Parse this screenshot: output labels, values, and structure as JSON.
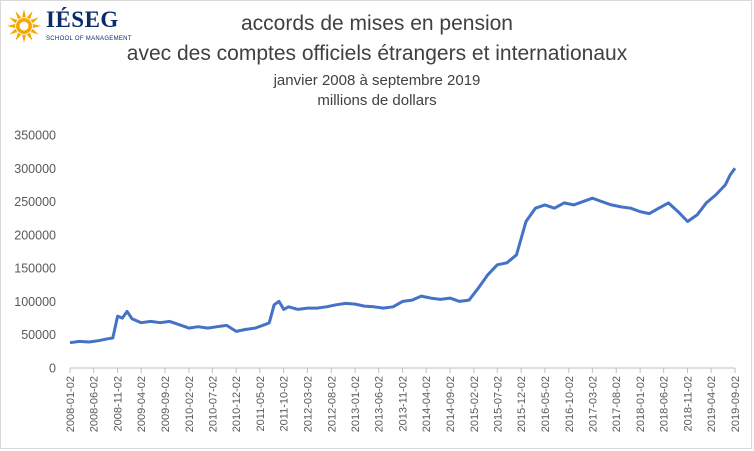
{
  "logo": {
    "brand": "IÉSEG",
    "tagline": "SCHOOL OF MANAGEMENT",
    "colors": {
      "sun": "#f5a800",
      "text": "#0a2a6b"
    }
  },
  "chart_data": {
    "type": "line",
    "title": "accords de mises en pension",
    "title_line2": "avec des comptes officiels étrangers et internationaux",
    "subtitle": "janvier 2008 à septembre 2019",
    "subtitle_line2": "millions de dollars",
    "xlabel": "",
    "ylabel": "",
    "ylim": [
      0,
      350000
    ],
    "xlim": [
      "2008-01-02",
      "2019-09-02"
    ],
    "y_ticks": [
      "0",
      "50000",
      "100000",
      "150000",
      "200000",
      "250000",
      "300000",
      "350000"
    ],
    "x_ticks": [
      "2008-01-02",
      "2008-06-02",
      "2008-11-02",
      "2009-04-02",
      "2009-09-02",
      "2010-02-02",
      "2010-07-02",
      "2010-12-02",
      "2011-05-02",
      "2011-10-02",
      "2012-03-02",
      "2012-08-02",
      "2013-01-02",
      "2013-06-02",
      "2013-11-02",
      "2014-04-02",
      "2014-09-02",
      "2015-02-02",
      "2015-07-02",
      "2015-12-02",
      "2016-05-02",
      "2016-10-02",
      "2017-03-02",
      "2017-08-02",
      "2018-01-02",
      "2018-06-02",
      "2018-11-02",
      "2019-04-02",
      "2019-09-02"
    ],
    "grid": false,
    "legend": "none",
    "line_color": "#4472c4",
    "series": [
      {
        "x": [
          "2008-01-02",
          "2008-03-02",
          "2008-05-02",
          "2008-07-02",
          "2008-09-02",
          "2008-10-02",
          "2008-11-02",
          "2008-12-02",
          "2009-01-02",
          "2009-02-02",
          "2009-04-02",
          "2009-06-02",
          "2009-08-02",
          "2009-10-02",
          "2009-12-02",
          "2010-02-02",
          "2010-04-02",
          "2010-06-02",
          "2010-08-02",
          "2010-10-02",
          "2010-12-02",
          "2011-02-02",
          "2011-04-02",
          "2011-06-02",
          "2011-07-02",
          "2011-08-02",
          "2011-09-02",
          "2011-10-02",
          "2011-11-02",
          "2012-01-02",
          "2012-03-02",
          "2012-05-02",
          "2012-07-02",
          "2012-09-02",
          "2012-11-02",
          "2013-01-02",
          "2013-03-02",
          "2013-05-02",
          "2013-07-02",
          "2013-09-02",
          "2013-11-02",
          "2014-01-02",
          "2014-03-02",
          "2014-05-02",
          "2014-07-02",
          "2014-09-02",
          "2014-11-02",
          "2015-01-02",
          "2015-03-02",
          "2015-05-02",
          "2015-07-02",
          "2015-09-02",
          "2015-11-02",
          "2016-01-02",
          "2016-03-02",
          "2016-05-02",
          "2016-07-02",
          "2016-09-02",
          "2016-11-02",
          "2017-01-02",
          "2017-03-02",
          "2017-05-02",
          "2017-07-02",
          "2017-09-02",
          "2017-11-02",
          "2018-01-02",
          "2018-03-02",
          "2018-05-02",
          "2018-07-02",
          "2018-09-02",
          "2018-11-02",
          "2019-01-02",
          "2019-03-02",
          "2019-05-02",
          "2019-07-02",
          "2019-08-02",
          "2019-09-02"
        ],
        "y": [
          38000,
          40000,
          39000,
          41000,
          44000,
          45000,
          78000,
          75000,
          85000,
          74000,
          68000,
          70000,
          68000,
          70000,
          65000,
          60000,
          62000,
          60000,
          62000,
          64000,
          55000,
          58000,
          60000,
          65000,
          68000,
          95000,
          100000,
          88000,
          92000,
          88000,
          90000,
          90000,
          92000,
          95000,
          97000,
          96000,
          93000,
          92000,
          90000,
          92000,
          100000,
          102000,
          108000,
          105000,
          103000,
          105000,
          100000,
          102000,
          120000,
          140000,
          155000,
          158000,
          170000,
          220000,
          240000,
          245000,
          240000,
          248000,
          245000,
          250000,
          255000,
          250000,
          245000,
          242000,
          240000,
          235000,
          232000,
          240000,
          248000,
          235000,
          220000,
          230000,
          248000,
          260000,
          275000,
          290000,
          300000
        ]
      }
    ]
  }
}
